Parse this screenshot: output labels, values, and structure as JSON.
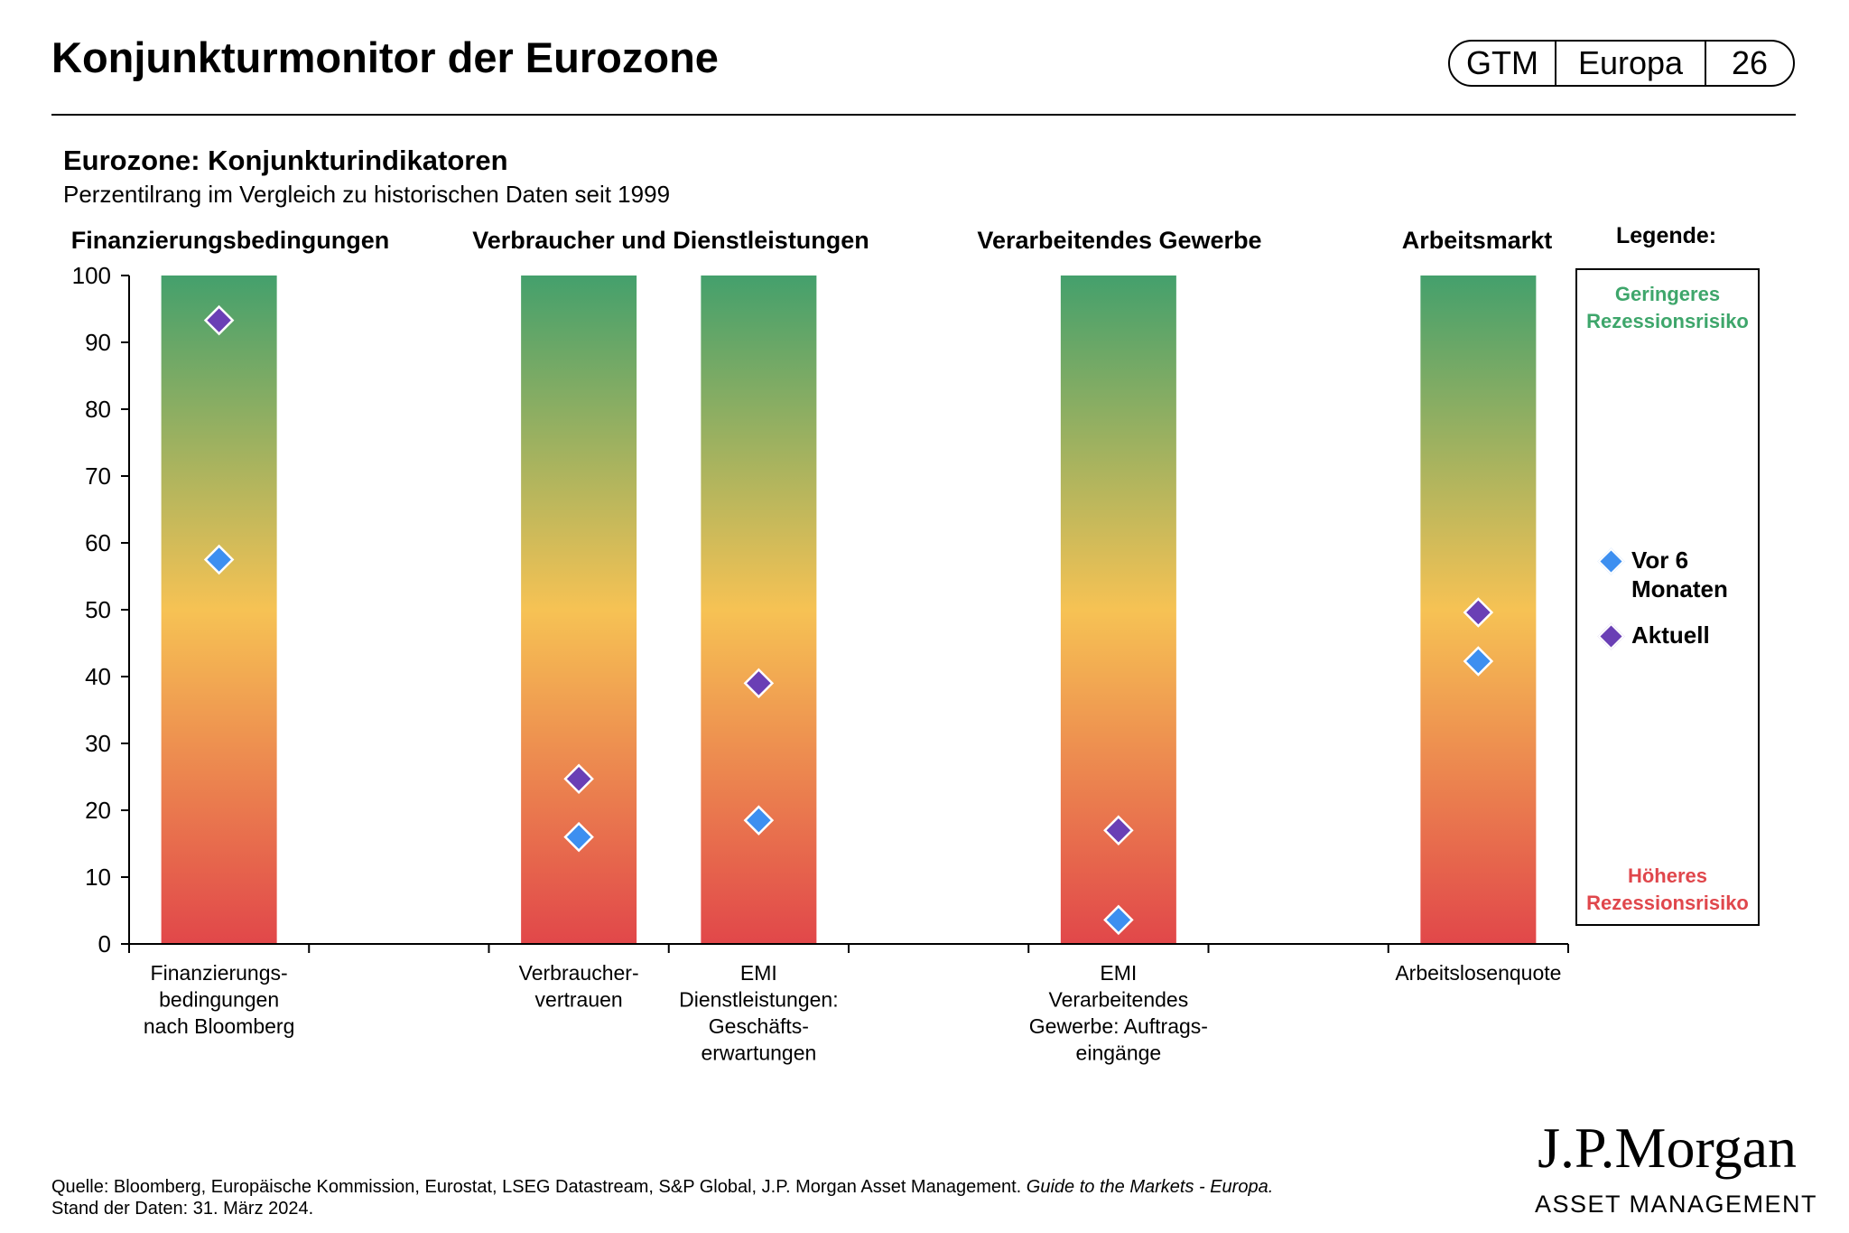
{
  "header": {
    "title": "Konjunkturmonitor der Eurozone",
    "badge": {
      "gtm": "GTM",
      "region": "Europa",
      "page": "26"
    }
  },
  "chart_data": {
    "type": "scatter",
    "title": "Eurozone: Konjunkturindikatoren",
    "subtitle": "Perzentilrang im Vergleich zu historischen Daten seit 1999",
    "ylim": [
      0,
      100
    ],
    "yticks": [
      0,
      10,
      20,
      30,
      40,
      50,
      60,
      70,
      80,
      90,
      100
    ],
    "groups": [
      {
        "name": "Finanzierungsbedingungen"
      },
      {
        "name": "Verbraucher und Dienstleistungen"
      },
      {
        "name": "Verarbeitendes Gewerbe"
      },
      {
        "name": "Arbeitsmarkt"
      }
    ],
    "categories": [
      {
        "label": [
          "Finanzierungs-",
          "bedingungen",
          "nach Bloomberg"
        ],
        "group": 0
      },
      {
        "label": [
          "Verbraucher-",
          "vertrauen"
        ],
        "group": 1
      },
      {
        "label": [
          "EMI",
          "Dienstleistungen:",
          "Geschäfts-",
          "erwartungen"
        ],
        "group": 1
      },
      {
        "label": [
          "EMI",
          "Verarbeitendes",
          "Gewerbe: Auftrags-",
          "eingänge"
        ],
        "group": 2
      },
      {
        "label": [
          "Arbeitslosenquote"
        ],
        "group": 3
      }
    ],
    "series": [
      {
        "name": "Vor 6 Monaten",
        "color": "#3d8ff0",
        "values": [
          57.5,
          16,
          18.5,
          3.6,
          42.3
        ]
      },
      {
        "name": "Aktuell",
        "color": "#6a3fb5",
        "values": [
          93.3,
          24.7,
          39,
          17,
          49.6
        ]
      }
    ],
    "gradient": {
      "top": "#44a06c",
      "middle": "#f6c254",
      "bottom": "#e1474a"
    },
    "legend": {
      "heading": "Legende:",
      "low_risk": [
        "Geringeres",
        "Rezessionsrisiko"
      ],
      "high_risk": [
        "Höheres",
        "Rezessionsrisiko"
      ],
      "prior": [
        "Vor 6",
        "Monaten"
      ],
      "current": "Aktuell",
      "low_risk_color": "#3ea66b",
      "high_risk_color": "#e0474c"
    }
  },
  "footer": {
    "source_prefix": "Quelle: Bloomberg, Europäische Kommission, Eurostat, LSEG Datastream, S&P Global, J.P. Morgan Asset Management.",
    "source_italic": "Guide to the Markets - Europa.",
    "date": "Stand der Daten: 31. März 2024."
  },
  "logo": {
    "name": "J.P.Morgan",
    "sub": "ASSET MANAGEMENT"
  }
}
